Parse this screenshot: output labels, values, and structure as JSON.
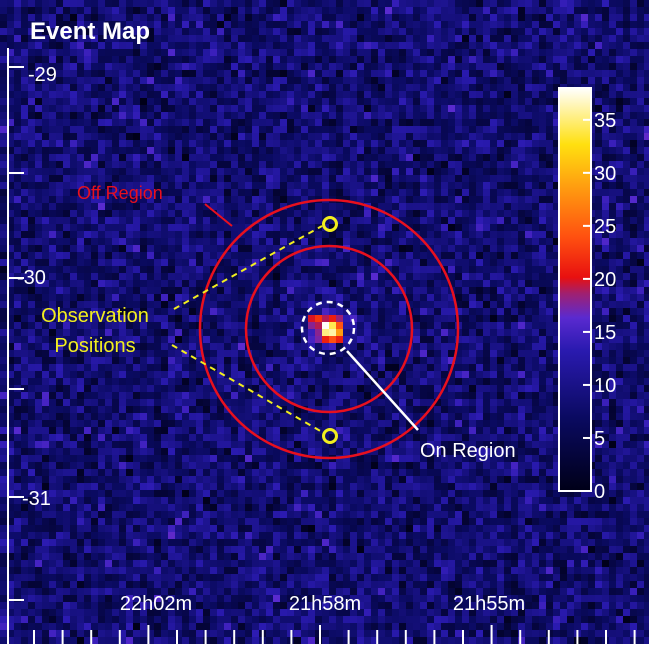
{
  "chart_data": {
    "type": "heatmap",
    "title": "Event Map",
    "xlabel": "",
    "ylabel": "",
    "x_tick_labels": [
      "22h02m",
      "21h58m",
      "21h55m"
    ],
    "y_tick_labels": [
      "-29",
      "-30",
      "-31"
    ],
    "colorbar": {
      "min": 0,
      "max": 38,
      "ticks": [
        "35",
        "30",
        "25",
        "20",
        "15",
        "10",
        "5",
        "0"
      ],
      "tick_values": [
        35,
        30,
        25,
        20,
        15,
        10,
        5,
        0
      ]
    },
    "background_counts": 8,
    "peak_counts": 38,
    "annotations": {
      "off_region": "Off Region",
      "observation_positions_line1": "Observation",
      "observation_positions_line2": "Positions",
      "on_region": "On Region"
    },
    "colors": {
      "background": "#0a0a58",
      "region_red": "#e8101e",
      "observation_yellow": "#f2ee1e",
      "on_region_white": "#ffffff"
    }
  }
}
